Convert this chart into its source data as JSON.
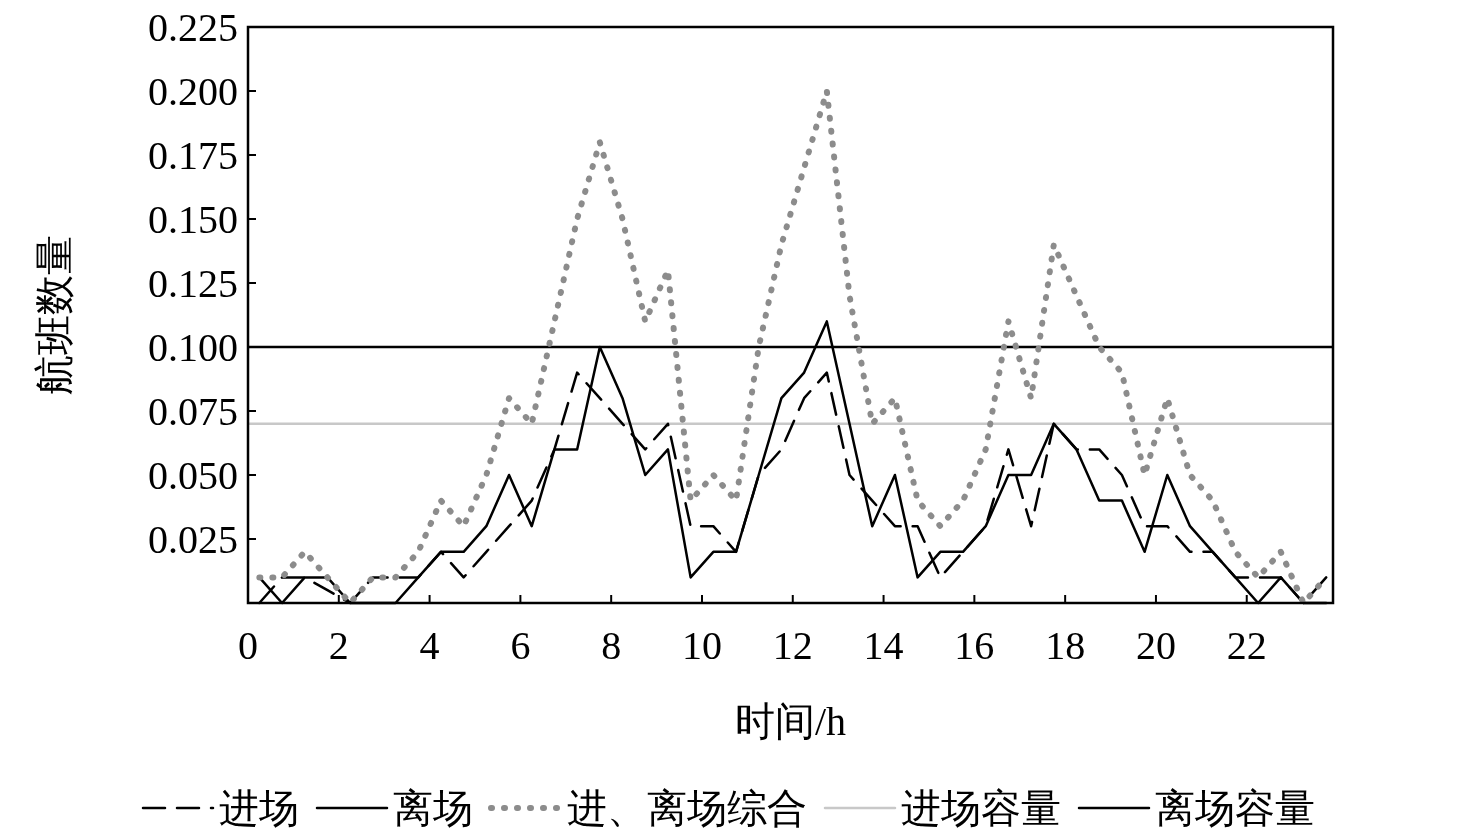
{
  "chart_data": {
    "type": "line",
    "xlabel": "时间/h",
    "ylabel": "航班数量",
    "xlim": [
      0,
      23.9
    ],
    "ylim": [
      0,
      0.225
    ],
    "xticks": [
      0,
      2,
      4,
      6,
      8,
      10,
      12,
      14,
      16,
      18,
      20,
      22
    ],
    "yticks": [
      {
        "value": 0,
        "label": null
      },
      0.025,
      {
        "value": 0.05,
        "label": "0.050"
      },
      0.075,
      {
        "value": 0.1,
        "label": "0.100"
      },
      0.125,
      {
        "value": 0.15,
        "label": "0.150"
      },
      0.175,
      {
        "value": 0.2,
        "label": "0.200"
      },
      0.225
    ],
    "x": [
      0.25,
      0.75,
      1.25,
      1.75,
      2.25,
      2.75,
      3.25,
      3.75,
      4.25,
      4.75,
      5.25,
      5.75,
      6.25,
      6.75,
      7.25,
      7.75,
      8.25,
      8.75,
      9.25,
      9.75,
      10.25,
      10.75,
      11.25,
      11.75,
      12.25,
      12.75,
      13.25,
      13.75,
      14.25,
      14.75,
      15.25,
      15.75,
      16.25,
      16.75,
      17.25,
      17.75,
      18.25,
      18.75,
      19.25,
      19.75,
      20.25,
      20.75,
      21.25,
      21.75,
      22.25,
      22.75,
      23.25,
      23.75
    ],
    "series": [
      {
        "name": "进场",
        "color": "#000000",
        "line_style": "dashed",
        "values": [
          0,
          0.01,
          0.01,
          0.005,
          0,
          0.01,
          0.01,
          0.01,
          0.02,
          0.01,
          0.02,
          0.03,
          0.04,
          0.06,
          0.09,
          0.08,
          0.07,
          0.06,
          0.07,
          0.03,
          0.03,
          0.02,
          0.05,
          0.06,
          0.08,
          0.09,
          0.05,
          0.04,
          0.03,
          0.03,
          0.01,
          0.02,
          0.03,
          0.06,
          0.03,
          0.07,
          0.06,
          0.06,
          0.05,
          0.03,
          0.03,
          0.02,
          0.02,
          0.01,
          0.01,
          0.01,
          0,
          0.01
        ]
      },
      {
        "name": "离场",
        "color": "#000000",
        "line_style": "solid",
        "values": [
          0.01,
          0,
          0.01,
          0.01,
          0,
          0,
          0,
          0.01,
          0.02,
          0.02,
          0.03,
          0.05,
          0.03,
          0.06,
          0.06,
          0.1,
          0.08,
          0.05,
          0.06,
          0.01,
          0.02,
          0.02,
          0.05,
          0.08,
          0.09,
          0.11,
          0.07,
          0.03,
          0.05,
          0.01,
          0.02,
          0.02,
          0.03,
          0.05,
          0.05,
          0.07,
          0.06,
          0.04,
          0.04,
          0.02,
          0.05,
          0.03,
          0.02,
          0.01,
          0,
          0.01,
          0,
          0
        ]
      },
      {
        "name": "进、离场综合",
        "color": "#8c8c8c",
        "line_style": "dotted",
        "values": [
          0.01,
          0.01,
          0.02,
          0.01,
          0,
          0.01,
          0.01,
          0.02,
          0.04,
          0.03,
          0.05,
          0.08,
          0.07,
          0.11,
          0.15,
          0.18,
          0.15,
          0.11,
          0.13,
          0.04,
          0.05,
          0.04,
          0.1,
          0.14,
          0.17,
          0.2,
          0.12,
          0.07,
          0.08,
          0.04,
          0.03,
          0.04,
          0.06,
          0.11,
          0.08,
          0.14,
          0.12,
          0.1,
          0.09,
          0.05,
          0.08,
          0.05,
          0.04,
          0.02,
          0.01,
          0.02,
          0,
          0.01
        ]
      }
    ],
    "ref_lines": [
      {
        "axis": "y",
        "value": 0.07,
        "label": "进场容量",
        "color": "#c8c8c8"
      },
      {
        "axis": "y",
        "value": 0.1,
        "label": "离场容量",
        "color": "#000000"
      }
    ],
    "legend": "bottom",
    "grid": false
  }
}
